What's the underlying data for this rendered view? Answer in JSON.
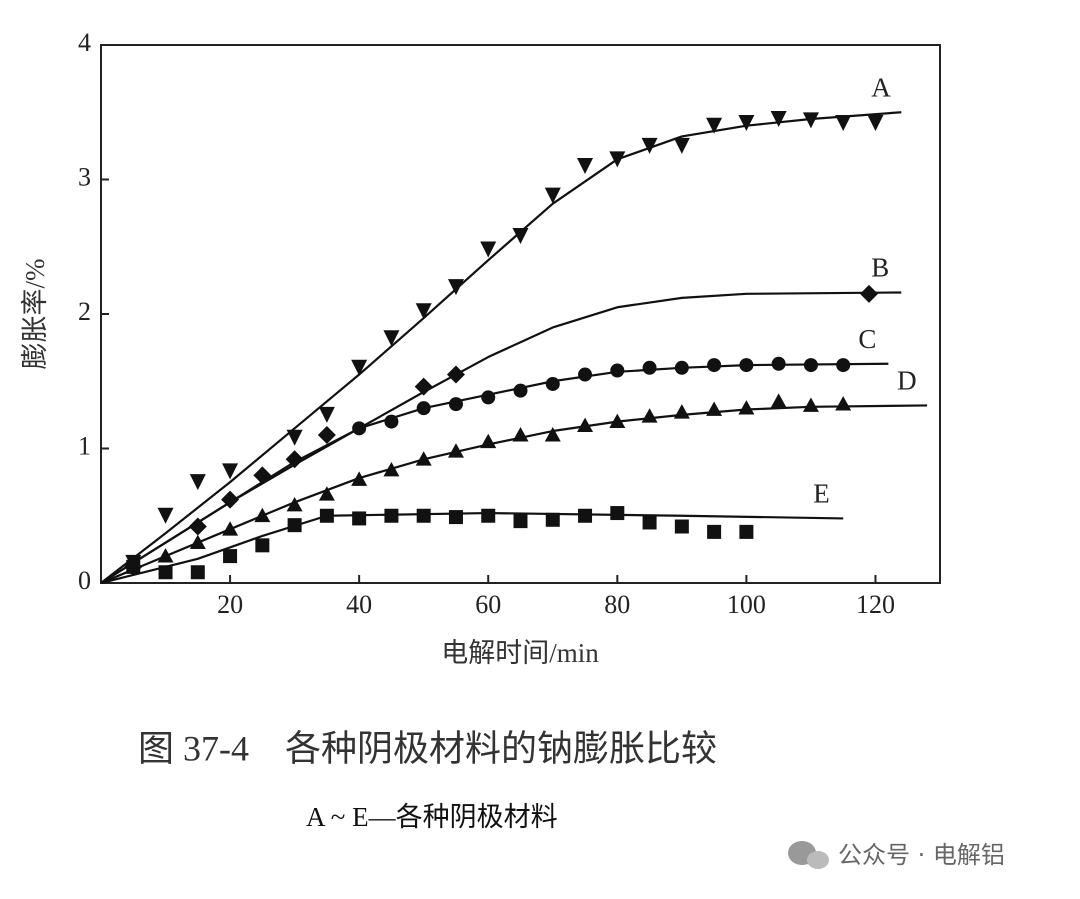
{
  "chart_data": {
    "type": "scatter",
    "x_label": "电解时间/min",
    "y_label": "膨胀率/%",
    "xlim": [
      0,
      130
    ],
    "ylim": [
      0,
      4
    ],
    "xticks": [
      20,
      40,
      60,
      80,
      100,
      120
    ],
    "yticks": [
      0,
      1,
      2,
      3,
      4
    ],
    "color": "#111111",
    "series": [
      {
        "name": "A",
        "marker": "triangle-down",
        "x": [
          5,
          10,
          15,
          20,
          30,
          35,
          40,
          45,
          50,
          55,
          60,
          65,
          70,
          75,
          80,
          85,
          90,
          95,
          100,
          105,
          110,
          115,
          120
        ],
        "values": [
          0.15,
          0.5,
          0.75,
          0.83,
          1.08,
          1.25,
          1.6,
          1.82,
          2.02,
          2.2,
          2.48,
          2.58,
          2.88,
          3.1,
          3.15,
          3.25,
          3.25,
          3.4,
          3.42,
          3.45,
          3.44,
          3.42,
          3.42
        ],
        "fit": {
          "x": [
            0,
            10,
            20,
            30,
            40,
            50,
            60,
            70,
            80,
            90,
            100,
            110,
            124
          ],
          "values": [
            0,
            0.37,
            0.75,
            1.15,
            1.55,
            1.97,
            2.4,
            2.82,
            3.15,
            3.32,
            3.4,
            3.45,
            3.5
          ]
        }
      },
      {
        "name": "B",
        "marker": "diamond",
        "x": [
          5,
          15,
          20,
          25,
          30,
          35,
          50,
          55,
          119
        ],
        "values": [
          0.12,
          0.42,
          0.62,
          0.8,
          0.92,
          1.1,
          1.46,
          1.55,
          2.15
        ],
        "fit": {
          "x": [
            0,
            10,
            20,
            30,
            40,
            50,
            60,
            70,
            80,
            90,
            100,
            124
          ],
          "values": [
            0,
            0.3,
            0.6,
            0.88,
            1.15,
            1.42,
            1.68,
            1.9,
            2.05,
            2.12,
            2.15,
            2.16
          ]
        }
      },
      {
        "name": "C",
        "marker": "circle",
        "x": [
          40,
          45,
          50,
          55,
          60,
          65,
          70,
          75,
          80,
          85,
          90,
          95,
          100,
          105,
          110,
          115
        ],
        "values": [
          1.15,
          1.2,
          1.3,
          1.33,
          1.38,
          1.43,
          1.48,
          1.55,
          1.58,
          1.6,
          1.6,
          1.62,
          1.62,
          1.63,
          1.62,
          1.62
        ],
        "fit": {
          "x": [
            0,
            10,
            20,
            30,
            40,
            50,
            60,
            70,
            80,
            90,
            100,
            122
          ],
          "values": [
            0,
            0.3,
            0.6,
            0.9,
            1.15,
            1.3,
            1.4,
            1.5,
            1.57,
            1.6,
            1.62,
            1.63
          ]
        }
      },
      {
        "name": "D",
        "marker": "triangle-up",
        "x": [
          10,
          15,
          20,
          25,
          30,
          35,
          40,
          45,
          50,
          55,
          60,
          65,
          70,
          75,
          80,
          85,
          90,
          95,
          100,
          105,
          110,
          115
        ],
        "values": [
          0.2,
          0.3,
          0.4,
          0.5,
          0.58,
          0.66,
          0.77,
          0.84,
          0.92,
          0.98,
          1.05,
          1.1,
          1.1,
          1.17,
          1.2,
          1.24,
          1.27,
          1.29,
          1.3,
          1.35,
          1.32,
          1.33
        ],
        "fit": {
          "x": [
            0,
            10,
            20,
            30,
            40,
            50,
            60,
            70,
            80,
            90,
            100,
            110,
            128
          ],
          "values": [
            0,
            0.2,
            0.4,
            0.6,
            0.78,
            0.92,
            1.03,
            1.13,
            1.2,
            1.25,
            1.29,
            1.31,
            1.32
          ]
        }
      },
      {
        "name": "E",
        "marker": "square",
        "x": [
          5,
          10,
          15,
          20,
          25,
          30,
          35,
          40,
          45,
          50,
          55,
          60,
          65,
          70,
          75,
          80,
          85,
          90,
          95,
          100
        ],
        "values": [
          0.12,
          0.08,
          0.08,
          0.2,
          0.28,
          0.43,
          0.5,
          0.48,
          0.5,
          0.5,
          0.49,
          0.5,
          0.46,
          0.47,
          0.5,
          0.52,
          0.45,
          0.42,
          0.38,
          0.38
        ],
        "fit": {
          "x": [
            0,
            15,
            25,
            35,
            60,
            90,
            115
          ],
          "values": [
            0,
            0.18,
            0.35,
            0.5,
            0.52,
            0.5,
            0.48
          ]
        }
      }
    ]
  },
  "caption": "图 37-4　各种阴极材料的钠膨胀比较",
  "subcaption": "A ~ E—各种阴极材料",
  "watermark": "公众号 · 电解铝"
}
